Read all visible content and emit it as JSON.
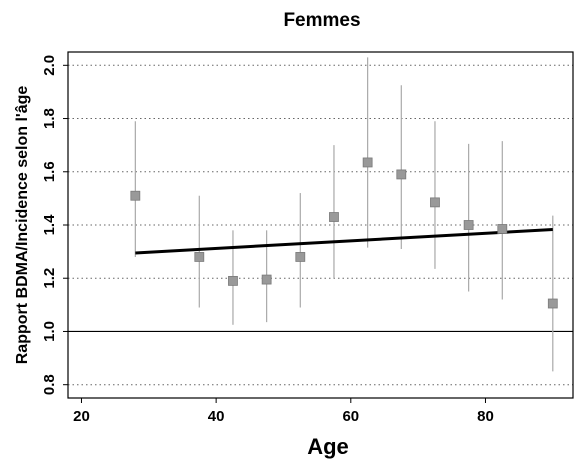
{
  "chart_data": {
    "type": "scatter",
    "title": "Femmes",
    "xlabel": "Age",
    "ylabel": "Rapport  BDMA/Incidence  selon l'âge",
    "xlim": [
      18,
      93
    ],
    "ylim": [
      0.75,
      2.05
    ],
    "x_ticks": [
      20,
      40,
      60,
      80
    ],
    "x_tick_labels": [
      "20",
      "40",
      "60",
      "80"
    ],
    "y_ticks": [
      0.8,
      1.0,
      1.2,
      1.4,
      1.6,
      1.8,
      2.0
    ],
    "y_tick_labels": [
      "0.8",
      "1.0",
      "1.2",
      "1.4",
      "1.6",
      "1.8",
      "2.0"
    ],
    "grid": "horizontal-dotted",
    "reference_line": 1.0,
    "series": [
      {
        "x": [
          28,
          37.5,
          42.5,
          47.5,
          52.5,
          57.5,
          62.5,
          67.5,
          72.5,
          77.5,
          82.5,
          90
        ],
        "y": [
          1.51,
          1.28,
          1.19,
          1.195,
          1.28,
          1.43,
          1.635,
          1.59,
          1.485,
          1.4,
          1.385,
          1.105
        ],
        "lower": [
          1.28,
          1.09,
          1.025,
          1.035,
          1.09,
          1.2,
          1.315,
          1.31,
          1.235,
          1.15,
          1.12,
          0.85
        ],
        "upper": [
          1.79,
          1.51,
          1.38,
          1.38,
          1.52,
          1.7,
          2.03,
          1.925,
          1.79,
          1.705,
          1.715,
          1.435
        ],
        "marker_color": "#999999",
        "errorbar_color": "#a9a9a9"
      }
    ],
    "trend_line": {
      "x": [
        28,
        90
      ],
      "y": [
        1.295,
        1.383
      ],
      "color": "#000000"
    }
  }
}
